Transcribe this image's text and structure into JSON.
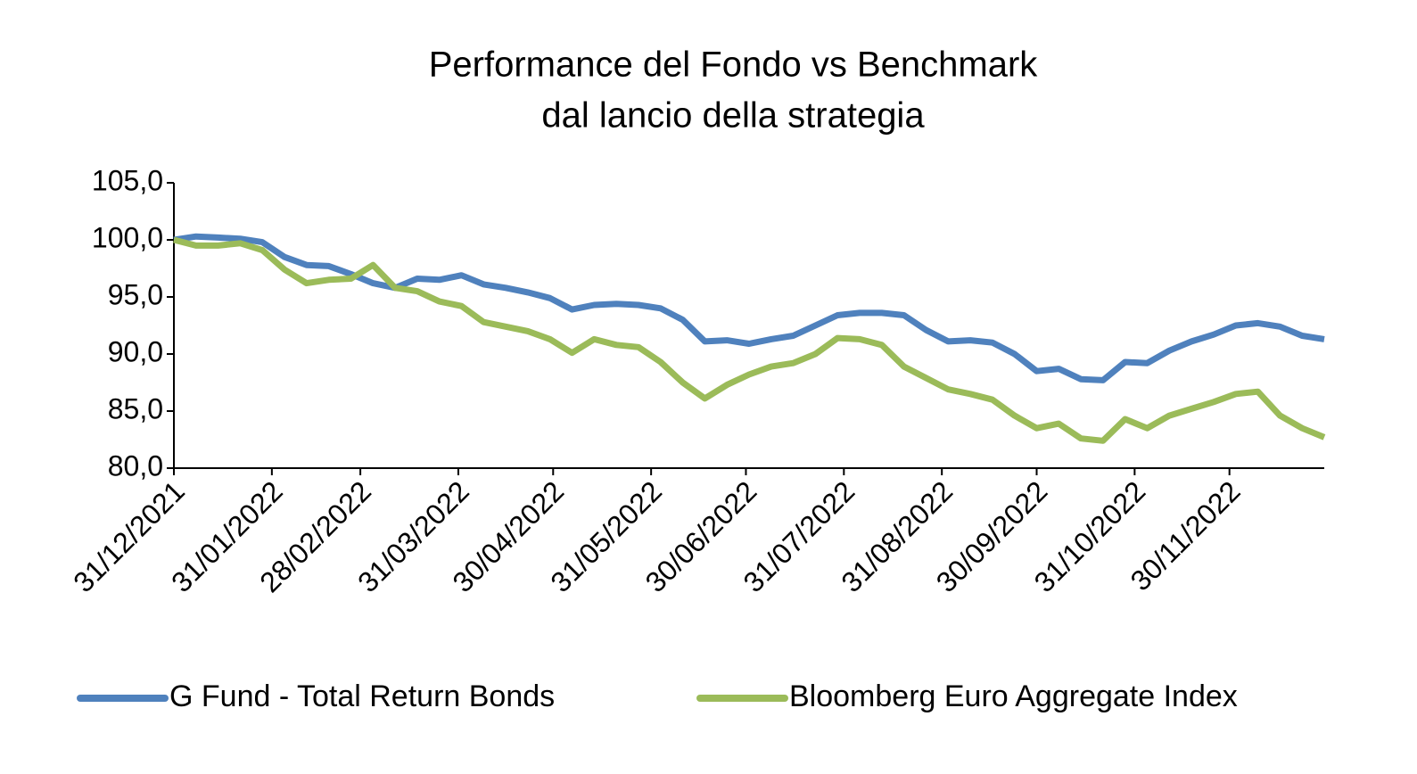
{
  "chart_data": {
    "type": "line",
    "title": "Performance del Fondo vs Benchmark",
    "subtitle": "dal lancio della strategia",
    "x": [
      "31/12/2021",
      "07/01/2022",
      "14/01/2022",
      "21/01/2022",
      "28/01/2022",
      "04/02/2022",
      "11/02/2022",
      "18/02/2022",
      "25/02/2022",
      "04/03/2022",
      "11/03/2022",
      "18/03/2022",
      "25/03/2022",
      "01/04/2022",
      "08/04/2022",
      "15/04/2022",
      "22/04/2022",
      "29/04/2022",
      "06/05/2022",
      "13/05/2022",
      "20/05/2022",
      "27/05/2022",
      "03/06/2022",
      "10/06/2022",
      "17/06/2022",
      "24/06/2022",
      "01/07/2022",
      "08/07/2022",
      "15/07/2022",
      "22/07/2022",
      "29/07/2022",
      "05/08/2022",
      "12/08/2022",
      "19/08/2022",
      "26/08/2022",
      "02/09/2022",
      "09/09/2022",
      "16/09/2022",
      "23/09/2022",
      "30/09/2022",
      "07/10/2022",
      "14/10/2022",
      "21/10/2022",
      "28/10/2022",
      "04/11/2022",
      "11/11/2022",
      "18/11/2022",
      "25/11/2022",
      "02/12/2022",
      "09/12/2022",
      "16/12/2022",
      "23/12/2022",
      "30/12/2022"
    ],
    "series": [
      {
        "name": "G Fund - Total Return Bonds",
        "color": "#4f81bd",
        "values": [
          100.0,
          100.3,
          100.2,
          100.1,
          99.8,
          98.5,
          97.8,
          97.7,
          97.0,
          96.2,
          95.8,
          96.6,
          96.5,
          96.9,
          96.1,
          95.8,
          95.4,
          94.9,
          93.9,
          94.3,
          94.4,
          94.3,
          94.0,
          93.0,
          91.1,
          91.2,
          90.9,
          91.3,
          91.6,
          92.5,
          93.4,
          93.6,
          93.6,
          93.4,
          92.1,
          91.1,
          91.2,
          91.0,
          90.0,
          88.5,
          88.7,
          87.8,
          87.7,
          89.3,
          89.2,
          90.3,
          91.1,
          91.7,
          92.5,
          92.7,
          92.4,
          91.6,
          91.3
        ]
      },
      {
        "name": "Bloomberg Euro Aggregate Index",
        "color": "#9bbb59",
        "values": [
          100.0,
          99.5,
          99.5,
          99.7,
          99.1,
          97.4,
          96.2,
          96.5,
          96.6,
          97.8,
          95.8,
          95.5,
          94.6,
          94.2,
          92.8,
          92.4,
          92.0,
          91.3,
          90.1,
          91.3,
          90.8,
          90.6,
          89.3,
          87.5,
          86.1,
          87.3,
          88.2,
          88.9,
          89.2,
          90.0,
          91.4,
          91.3,
          90.8,
          88.9,
          87.9,
          86.9,
          86.5,
          86.0,
          84.6,
          83.5,
          83.9,
          82.6,
          82.4,
          84.3,
          83.5,
          84.6,
          85.2,
          85.8,
          86.5,
          86.7,
          84.6,
          83.5,
          82.7
        ]
      }
    ],
    "xlim": [
      "31/12/2021",
      "30/12/2022"
    ],
    "xticks": [
      "31/12/2021",
      "31/01/2022",
      "28/02/2022",
      "31/03/2022",
      "30/04/2022",
      "31/05/2022",
      "30/06/2022",
      "31/07/2022",
      "31/08/2022",
      "30/09/2022",
      "31/10/2022",
      "30/11/2022"
    ],
    "ylim": [
      80,
      105
    ],
    "yticks": [
      {
        "value": 80,
        "label": "80,0"
      },
      {
        "value": 85,
        "label": "85,0"
      },
      {
        "value": 90,
        "label": "90,0"
      },
      {
        "value": 95,
        "label": "95,0"
      },
      {
        "value": 100,
        "label": "100,0"
      },
      {
        "value": 105,
        "label": "105,0"
      }
    ],
    "legend": "bottom"
  }
}
